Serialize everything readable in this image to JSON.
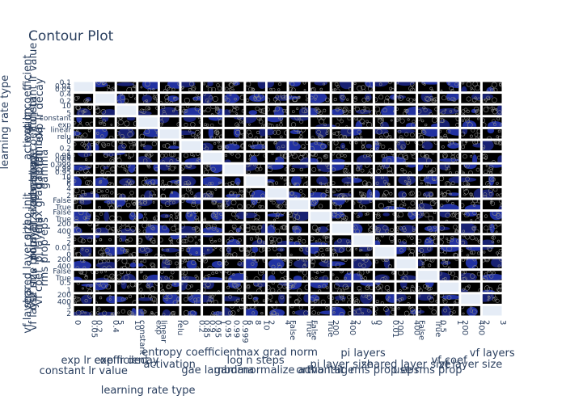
{
  "chart_data": {
    "type": "contour-matrix",
    "title": "Contour Plot",
    "params": [
      {
        "label": "constant lr value",
        "ticks": [
          "0.1",
          "0.01",
          "0.05"
        ],
        "xticks": [
          "0",
          "0.05"
        ]
      },
      {
        "label": "exp lr coefficient",
        "ticks": [
          "0.4",
          "0.2"
        ],
        "xticks": [
          "0.2",
          "0.4"
        ]
      },
      {
        "label": "exp lr decay",
        "ticks": [
          "10",
          "5"
        ],
        "xticks": [
          "5",
          "10"
        ]
      },
      {
        "label": "learning rate type",
        "ticks": [
          "constant",
          "exp"
        ],
        "xticks": [
          "constant",
          "exp"
        ]
      },
      {
        "label": "activation",
        "ticks": [
          "linear",
          "relu"
        ],
        "xticks": [
          "linear",
          "relu"
        ]
      },
      {
        "label": "entropy coefficient",
        "ticks": [
          "0",
          "0.2"
        ],
        "xticks": [
          "0",
          "0.2"
        ]
      },
      {
        "label": "gae lambda",
        "ticks": [
          "1",
          "0.95",
          "0.9",
          "0.85"
        ],
        "xticks": [
          "0.85",
          "0.9",
          "0.95",
          "1"
        ]
      },
      {
        "label": "gamma",
        "ticks": [
          "0.999",
          "0.99",
          "0.95"
        ],
        "xticks": [
          "0.95",
          "0.99",
          "0.999"
        ]
      },
      {
        "label": "log n steps",
        "ticks": [
          "10",
          "8",
          "6"
        ],
        "xticks": [
          "6",
          "8",
          "10"
        ]
      },
      {
        "label": "max grad norm",
        "ticks": [
          "4",
          "2"
        ],
        "xticks": [
          "2",
          "4"
        ]
      },
      {
        "label": "normalize advantage",
        "ticks": [
          "False",
          "True"
        ],
        "xticks": [
          "False",
          "True"
        ]
      },
      {
        "label": "ortho init",
        "ticks": [
          "False",
          "True"
        ],
        "xticks": [
          "False",
          "True"
        ]
      },
      {
        "label": "pi layer size",
        "ticks": [
          "200",
          "400"
        ],
        "xticks": [
          "200",
          "400"
        ]
      },
      {
        "label": "pi layers",
        "ticks": [
          "3",
          "2"
        ],
        "xticks": [
          "2",
          "3"
        ]
      },
      {
        "label": "rms prop eps",
        "ticks": [
          "0.01",
          "0"
        ],
        "xticks": [
          "0",
          "0.01"
        ]
      },
      {
        "label": "shared layer size",
        "ticks": [
          "200",
          "400"
        ],
        "xticks": [
          "200",
          "400"
        ]
      },
      {
        "label": "use rms prop",
        "ticks": [
          "False",
          "True"
        ],
        "xticks": [
          "False",
          "True"
        ]
      },
      {
        "label": "vf coef",
        "ticks": [
          "0.5",
          "1"
        ],
        "xticks": [
          "0.5",
          "1"
        ]
      },
      {
        "label": "vf layer size",
        "ticks": [
          "200",
          "400"
        ],
        "xticks": [
          "200",
          "400"
        ]
      },
      {
        "label": "vf layers",
        "ticks": [
          "3",
          "2"
        ],
        "xticks": [
          "2",
          "3"
        ]
      }
    ],
    "colorscale": [
      "#000000",
      "#1a237e",
      "#2536b3"
    ],
    "empty_cell_color": "#e5ecf6",
    "contour_line_color": "#888888"
  }
}
